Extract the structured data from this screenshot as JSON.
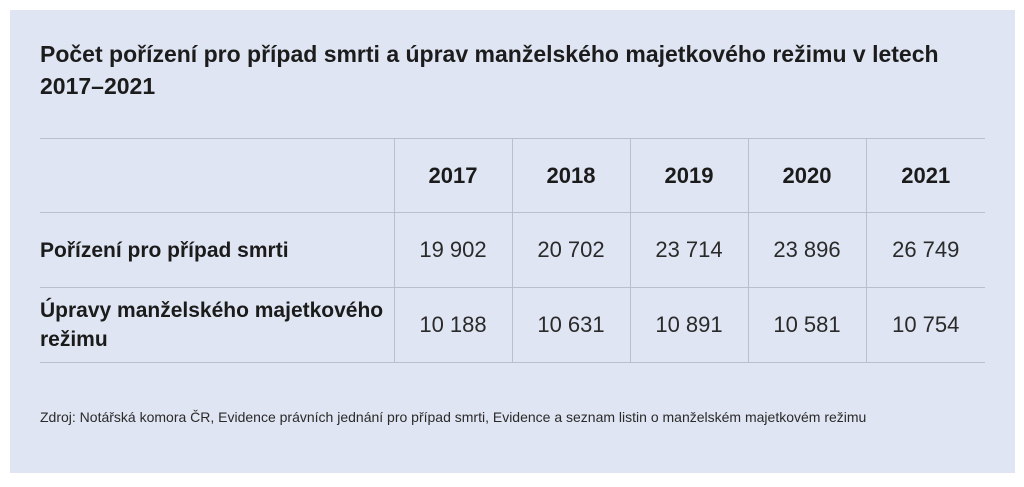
{
  "title": "Počet pořízení pro případ smrti a úprav manželského majetkového režimu v letech 2017–2021",
  "chart_data": {
    "type": "table",
    "title": "Počet pořízení pro případ smrti a úprav manželského majetkového režimu v letech 2017–2021",
    "columns": [
      "2017",
      "2018",
      "2019",
      "2020",
      "2021"
    ],
    "rows": [
      {
        "label": "Pořízení pro případ smrti",
        "display": [
          "19 902",
          "20 702",
          "23 714",
          "23 896",
          "26 749"
        ],
        "values": [
          19902,
          20702,
          23714,
          23896,
          26749
        ]
      },
      {
        "label": "Úpravy manželského majetkového režimu",
        "display": [
          "10 188",
          "10 631",
          "10 891",
          "10 581",
          "10 754"
        ],
        "values": [
          10188,
          10631,
          10891,
          10581,
          10754
        ]
      }
    ]
  },
  "source": "Zdroj: Notářská komora ČR, Evidence právních jednání pro případ smrti, Evidence a seznam listin o manželském majetkovém režimu",
  "colors": {
    "background": "#dfe5f2",
    "text": "#1b1b1b",
    "gridline": "#b9bfcc"
  }
}
